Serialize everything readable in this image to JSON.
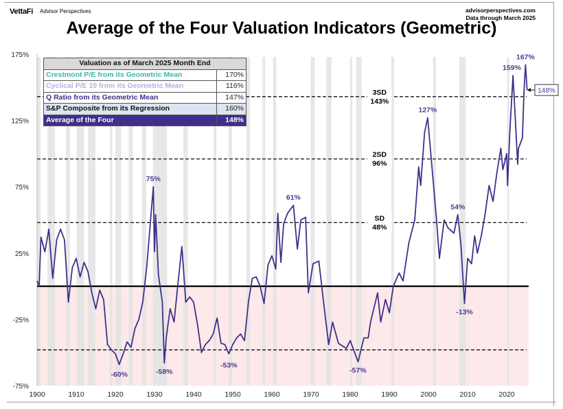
{
  "header": {
    "brand": "VettaFi",
    "brand_sub": "Advisor Perspectives",
    "source": "advisorperspectives.com",
    "data_through": "Data through March 2025"
  },
  "chart_data": {
    "type": "line",
    "title": "Average of the Four Valuation Indicators (Geometric)",
    "xlim": [
      1900,
      2025.6
    ],
    "ylim": [
      -75,
      175
    ],
    "x_ticks": [
      1900,
      1910,
      1920,
      1930,
      1940,
      1950,
      1960,
      1970,
      1980,
      1990,
      2000,
      2010,
      2020
    ],
    "y_ticks": [
      175,
      125,
      75,
      25,
      -25,
      -75
    ],
    "y_tick_labels": [
      "175%",
      "125%",
      "75%",
      "25%",
      "-25%",
      "-75%"
    ],
    "line_color": "#3f2f8a",
    "below_zero_fill": "#fde9e9",
    "recession_color": "#e3e3e3",
    "series": [
      {
        "points": [
          [
            1900,
            4
          ],
          [
            1900.5,
            0
          ],
          [
            1901,
            37
          ],
          [
            1902,
            26
          ],
          [
            1903,
            43
          ],
          [
            1904,
            6
          ],
          [
            1905,
            35
          ],
          [
            1906,
            43
          ],
          [
            1907,
            35
          ],
          [
            1908,
            -12
          ],
          [
            1909,
            14
          ],
          [
            1910,
            21
          ],
          [
            1911,
            7
          ],
          [
            1912,
            18
          ],
          [
            1913,
            11
          ],
          [
            1914,
            -5
          ],
          [
            1915,
            -17
          ],
          [
            1916,
            -3
          ],
          [
            1917,
            -10
          ],
          [
            1918,
            -44
          ],
          [
            1919,
            -48
          ],
          [
            1920,
            -51
          ],
          [
            1921,
            -59
          ],
          [
            1922,
            -51
          ],
          [
            1923,
            -42
          ],
          [
            1924,
            -46
          ],
          [
            1925,
            -32
          ],
          [
            1926,
            -25
          ],
          [
            1927,
            -12
          ],
          [
            1928,
            14
          ],
          [
            1929.7,
            75
          ],
          [
            1930,
            26
          ],
          [
            1930.3,
            54
          ],
          [
            1931,
            9
          ],
          [
            1932,
            -12
          ],
          [
            1932.5,
            -58
          ],
          [
            1933,
            -39
          ],
          [
            1934,
            -17
          ],
          [
            1935,
            -27
          ],
          [
            1936,
            2
          ],
          [
            1937,
            30
          ],
          [
            1938,
            -12
          ],
          [
            1939,
            -8
          ],
          [
            1940,
            -12
          ],
          [
            1941,
            -29
          ],
          [
            1942,
            -50
          ],
          [
            1943,
            -44
          ],
          [
            1944,
            -41
          ],
          [
            1945,
            -36
          ],
          [
            1946,
            -24
          ],
          [
            1947,
            -43
          ],
          [
            1948,
            -44
          ],
          [
            1949,
            -51
          ],
          [
            1950,
            -44
          ],
          [
            1951,
            -39
          ],
          [
            1952,
            -36
          ],
          [
            1953,
            -41
          ],
          [
            1954,
            -12
          ],
          [
            1955,
            6
          ],
          [
            1956,
            7
          ],
          [
            1957,
            0
          ],
          [
            1958,
            -13
          ],
          [
            1959,
            16
          ],
          [
            1960,
            23
          ],
          [
            1961,
            13
          ],
          [
            1961.5,
            55
          ],
          [
            1962.3,
            18
          ],
          [
            1963,
            47
          ],
          [
            1964,
            55
          ],
          [
            1965.5,
            61
          ],
          [
            1966.5,
            28
          ],
          [
            1967.4,
            50
          ],
          [
            1968.6,
            52
          ],
          [
            1969.3,
            -5
          ],
          [
            1970.5,
            17
          ],
          [
            1972,
            19
          ],
          [
            1973.4,
            -17
          ],
          [
            1974.5,
            -44
          ],
          [
            1975.5,
            -27
          ],
          [
            1977,
            -43
          ],
          [
            1979,
            -47
          ],
          [
            1980,
            -41
          ],
          [
            1982,
            -57
          ],
          [
            1983.5,
            -39
          ],
          [
            1984.6,
            -39
          ],
          [
            1985.2,
            -27
          ],
          [
            1987,
            -5
          ],
          [
            1987.8,
            -27
          ],
          [
            1989,
            -10
          ],
          [
            1990,
            -20
          ],
          [
            1991,
            0
          ],
          [
            1992.5,
            10
          ],
          [
            1993.5,
            4
          ],
          [
            1995,
            33
          ],
          [
            1996.5,
            50
          ],
          [
            1997.5,
            90
          ],
          [
            1998,
            76
          ],
          [
            1999,
            116
          ],
          [
            1999.8,
            127
          ],
          [
            2001,
            86
          ],
          [
            2002,
            52
          ],
          [
            2002.8,
            21
          ],
          [
            2004,
            50
          ],
          [
            2005,
            44
          ],
          [
            2006.5,
            40
          ],
          [
            2007.5,
            54
          ],
          [
            2008.3,
            31
          ],
          [
            2009.2,
            -13
          ],
          [
            2010,
            21
          ],
          [
            2011,
            17
          ],
          [
            2011.8,
            38
          ],
          [
            2012.5,
            25
          ],
          [
            2013.5,
            38
          ],
          [
            2014.5,
            55
          ],
          [
            2015.5,
            76
          ],
          [
            2016.5,
            64
          ],
          [
            2017.5,
            86
          ],
          [
            2018.5,
            104
          ],
          [
            2019,
            88
          ],
          [
            2020,
            100
          ],
          [
            2020.2,
            76
          ],
          [
            2020.8,
            117
          ],
          [
            2021.6,
            159
          ],
          [
            2022.8,
            92
          ],
          [
            2023,
            104
          ],
          [
            2024,
            112
          ],
          [
            2024.4,
            147
          ],
          [
            2024.8,
            167
          ],
          [
            2025.2,
            148
          ]
        ]
      }
    ],
    "reference_lines": [
      {
        "label": "3SD",
        "value_label": "143%",
        "value": 143
      },
      {
        "label": "2SD",
        "value_label": "96%",
        "value": 96
      },
      {
        "label": "SD",
        "value_label": "48%",
        "value": 48
      },
      {
        "label": "",
        "value_label": "",
        "value": -48
      }
    ],
    "zero_line": 0,
    "annotations": [
      {
        "text": "75%",
        "x": 1929.7,
        "y": 75
      },
      {
        "text": "61%",
        "x": 1965.5,
        "y": 61
      },
      {
        "text": "127%",
        "x": 1999.8,
        "y": 127
      },
      {
        "text": "54%",
        "x": 2007.5,
        "y": 54
      },
      {
        "text": "159%",
        "x": 2021.3,
        "y": 159
      },
      {
        "text": "167%",
        "x": 2024.8,
        "y": 167
      },
      {
        "text": "-60%",
        "x": 1921,
        "y": -60,
        "below": true
      },
      {
        "text": "-58%",
        "x": 1932.5,
        "y": -58,
        "below": true
      },
      {
        "text": "-53%",
        "x": 1949,
        "y": -53,
        "below": true
      },
      {
        "text": "-57%",
        "x": 1982,
        "y": -57,
        "below": true
      },
      {
        "text": "-13%",
        "x": 2009.2,
        "y": -13,
        "below": true
      }
    ],
    "current_marker": {
      "text": "148%",
      "value": 148
    },
    "recessions": [
      [
        1899.5,
        1900.9
      ],
      [
        1902.7,
        1904.6
      ],
      [
        1907.4,
        1908.4
      ],
      [
        1910.1,
        1912
      ],
      [
        1913,
        1914.9
      ],
      [
        1918.6,
        1919.2
      ],
      [
        1920,
        1921.5
      ],
      [
        1923.4,
        1924.5
      ],
      [
        1926.8,
        1927.9
      ],
      [
        1929.6,
        1933.2
      ],
      [
        1937.4,
        1938.5
      ],
      [
        1945.1,
        1945.8
      ],
      [
        1948.9,
        1949.8
      ],
      [
        1953.5,
        1954.4
      ],
      [
        1957.6,
        1958.3
      ],
      [
        1960.3,
        1961.1
      ],
      [
        1969.9,
        1970.9
      ],
      [
        1973.9,
        1975.2
      ],
      [
        1980,
        1980.5
      ],
      [
        1981.5,
        1982.9
      ],
      [
        1990.5,
        1991.2
      ],
      [
        2001.2,
        2001.9
      ],
      [
        2007.9,
        2009.5
      ],
      [
        2020.1,
        2020.3
      ]
    ],
    "legend_table": {
      "header": "Valuation as of March 2025 Month End",
      "rows": [
        {
          "label": "Crestmont P/E from its Geometric Mean",
          "value": "170%",
          "color": "#3fb3ad",
          "bg": "#ffffff"
        },
        {
          "label": "Cyclical P/E 10 from its Geometric Mean",
          "value": "116%",
          "color": "#b9addb",
          "bg": "#ffffff"
        },
        {
          "label": "Q Ratio from its Geometric Mean",
          "value": "147%",
          "color": "#3f2f8a",
          "bg": "#ffffff"
        },
        {
          "label": "S&P Composite from its Regression",
          "value": "160%",
          "color": "#111111",
          "bg": "#dde3f0"
        },
        {
          "label": "Average of the Four",
          "value": "148%",
          "color": "#ffffff",
          "bg": "#3f2f8a"
        }
      ]
    }
  }
}
